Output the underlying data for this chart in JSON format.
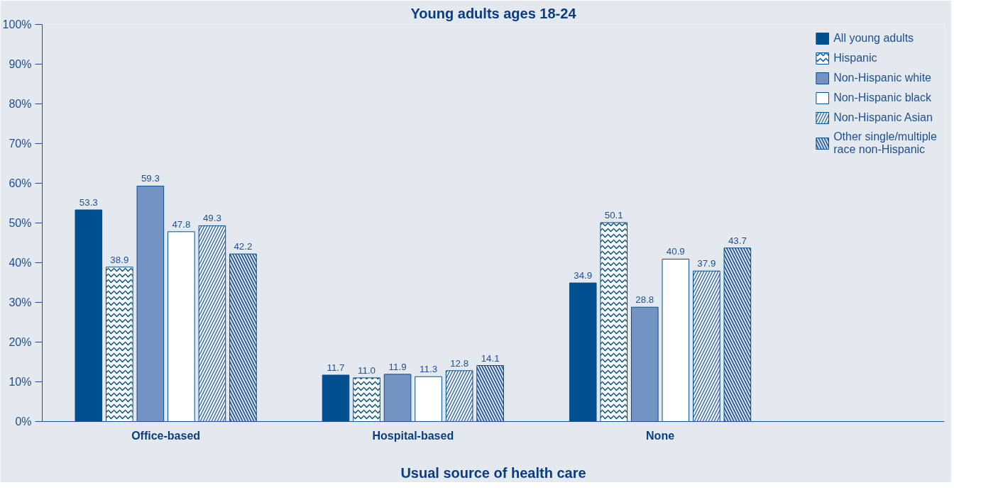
{
  "chart_data": {
    "type": "bar",
    "title": "Young adults ages 18-24",
    "xlabel": "Usual source of health care",
    "categories": [
      "Office-based",
      "Hospital-based",
      "None"
    ],
    "series": [
      {
        "name": "All young adults",
        "color": "#00508f",
        "values": [
          53.3,
          11.7,
          34.9
        ],
        "value_labels": [
          "53.3",
          "11.7",
          "34.9"
        ]
      },
      {
        "name": "Hispanic",
        "color": "#ffffff",
        "values": [
          38.9,
          11.0,
          50.1
        ],
        "value_labels": [
          "38.9",
          "11.0",
          "50.1"
        ]
      },
      {
        "name": "Non-Hispanic white",
        "color": "#7393c3",
        "values": [
          59.3,
          11.9,
          28.8
        ],
        "value_labels": [
          "59.3",
          "11.9",
          "28.8"
        ]
      },
      {
        "name": "Non-Hispanic black",
        "color": "#ffffff",
        "values": [
          47.8,
          11.3,
          40.9
        ],
        "value_labels": [
          "47.8",
          "11.3",
          "40.9"
        ]
      },
      {
        "name": "Non-Hispanic Asian",
        "color": "#ffffff",
        "values": [
          49.3,
          12.8,
          37.9
        ],
        "value_labels": [
          "49.3",
          "12.8",
          "37.9"
        ]
      },
      {
        "name": "Other single/multiple race non-Hispanic",
        "color": "#2f5f9e",
        "values": [
          42.2,
          14.1,
          43.7
        ],
        "value_labels": [
          "42.2",
          "14.1",
          "43.7"
        ]
      }
    ],
    "ylim": [
      0,
      100
    ],
    "yticks": [
      {
        "value": 0,
        "label": "0%"
      },
      {
        "value": 10,
        "label": "10%"
      },
      {
        "value": 20,
        "label": "20%"
      },
      {
        "value": 30,
        "label": "30%"
      },
      {
        "value": 40,
        "label": "40%"
      },
      {
        "value": 50,
        "label": "50%"
      },
      {
        "value": 60,
        "label": "60%"
      },
      {
        "value": 70,
        "label": "70%"
      },
      {
        "value": 80,
        "label": "80%"
      },
      {
        "value": 90,
        "label": "90%"
      },
      {
        "value": 100,
        "label": "100%"
      }
    ],
    "grid": false,
    "legend": "top right"
  }
}
